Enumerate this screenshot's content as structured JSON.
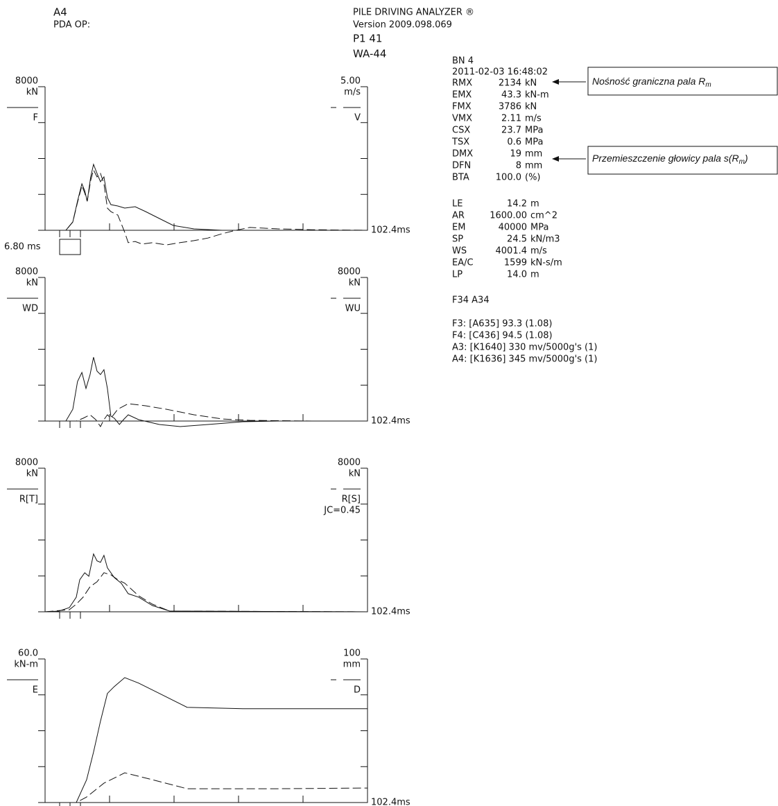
{
  "header": {
    "left": [
      "A4",
      "PDA OP:"
    ],
    "center": [
      "PILE DRIVING ANALYZER ®",
      "Version 2009.098.069",
      "P1 41",
      "WA-44"
    ]
  },
  "info": {
    "top": [
      "BN  4",
      "2011-02-03 16:48:02"
    ],
    "rows1": [
      [
        "RMX",
        "2134",
        "kN"
      ],
      [
        "EMX",
        "43.3",
        "kN-m"
      ],
      [
        "FMX",
        "3786",
        "kN"
      ],
      [
        "VMX",
        "2.11",
        "m/s"
      ],
      [
        "CSX",
        "23.7",
        "MPa"
      ],
      [
        "TSX",
        "0.6",
        "MPa"
      ],
      [
        "DMX",
        "19",
        "mm"
      ],
      [
        "DFN",
        "8",
        "mm"
      ],
      [
        "BTA",
        "100.0",
        "(%)"
      ]
    ],
    "rows2": [
      [
        "LE",
        "14.2",
        "m"
      ],
      [
        "AR",
        "1600.00",
        "cm^2"
      ],
      [
        "EM",
        "40000",
        "MPa"
      ],
      [
        "SP",
        "24.5",
        "kN/m3"
      ],
      [
        "WS",
        "4001.4",
        "m/s"
      ],
      [
        "EA/C",
        "1599",
        "kN-s/m"
      ],
      [
        "LP",
        "14.0",
        "m"
      ]
    ],
    "gauges": "F34  A34",
    "sensors": [
      "F3: [A635] 93.3 (1.08)",
      "F4: [C436] 94.5 (1.08)",
      "A3: [K1640] 330 mv/5000g's (1)",
      "A4: [K1636] 345 mv/5000g's (1)"
    ]
  },
  "annotations": [
    {
      "text": "Nośność graniczna pala R",
      "sub": "m",
      "tail": ""
    },
    {
      "text": "Przemieszczenie głowicy pala s(R",
      "sub": "m",
      "tail": ")"
    }
  ],
  "panels": [
    {
      "left": {
        "max": 8000,
        "unit": "kN",
        "label": "F"
      },
      "right": {
        "max": {
          "value": 5,
          "label": "5.00"
        },
        "unit": "m/s",
        "label": "V"
      },
      "xmax": {
        "value": 102.4,
        "label": "102.4ms"
      },
      "marker": "6.80 ms",
      "traces": [
        {
          "axis": "left",
          "style": "solid",
          "x": [
            0,
            6.6,
            8.8,
            10.3,
            11.7,
            12.6,
            13.4,
            14.5,
            15.4,
            16.5,
            17.6,
            18.7,
            19.8,
            20.9,
            23.1,
            25.3,
            28.6,
            31.9,
            36.3,
            40.7,
            47.3,
            56.2,
            102.4
          ],
          "values": [
            0,
            0,
            464,
            1623,
            2590,
            2203,
            1623,
            2976,
            3671,
            3169,
            2705,
            2976,
            1817,
            1430,
            1353,
            1237,
            1314,
            1044,
            657,
            271,
            77,
            0,
            0
          ]
        },
        {
          "axis": "right",
          "style": "dashed",
          "x": [
            0,
            6.6,
            8.8,
            10.3,
            11.7,
            12.6,
            13.4,
            14.5,
            15.4,
            16.5,
            17.6,
            18.7,
            19.8,
            20.9,
            23.1,
            25.3,
            26.4,
            28.6,
            30.8,
            34.1,
            38.5,
            42.9,
            47.3,
            51.7,
            56.2,
            60.6,
            65,
            73.8,
            84.8,
            102.4
          ],
          "values": [
            0,
            0,
            0.29,
            0.97,
            1.55,
            1.3,
            1.01,
            1.74,
            2.1,
            1.86,
            1.98,
            1.62,
            0.77,
            0.65,
            0.53,
            -0.07,
            -0.43,
            -0.39,
            -0.48,
            -0.43,
            -0.51,
            -0.43,
            -0.36,
            -0.27,
            -0.12,
            0,
            0.1,
            0.05,
            0.02,
            0
          ]
        }
      ]
    },
    {
      "left": {
        "max": 8000,
        "unit": "kN",
        "label": "WD"
      },
      "right": {
        "max": 8000,
        "unit": "kN",
        "label": "WU"
      },
      "xmax": {
        "value": 102.4,
        "label": "102.4ms"
      },
      "traces": [
        {
          "axis": "left",
          "style": "solid",
          "x": [
            0,
            6.6,
            8.8,
            10.3,
            11.7,
            13.0,
            14.3,
            15.4,
            16.5,
            17.6,
            18.7,
            19.8,
            20.9,
            22.0,
            23.6,
            24.9,
            26.4,
            29.7,
            36.3,
            42.9,
            51.7,
            62.8,
            73.8,
            102.4
          ],
          "values": [
            0,
            0,
            657,
            2203,
            2705,
            1817,
            2590,
            3556,
            2783,
            2590,
            2860,
            1817,
            271,
            155,
            -193,
            77,
            348,
            77,
            -193,
            -309,
            -193,
            -39,
            0,
            0
          ]
        },
        {
          "axis": "right",
          "style": "dashed",
          "x": [
            0,
            9.9,
            12.1,
            14.3,
            16.1,
            17.6,
            18.7,
            19.8,
            20.9,
            23.1,
            26.4,
            31.9,
            38.5,
            47.3,
            56.2,
            65,
            84.8,
            102.4
          ],
          "values": [
            0,
            0,
            155,
            348,
            77,
            -309,
            77,
            348,
            155,
            657,
            966,
            850,
            657,
            348,
            116,
            39,
            0,
            0
          ]
        }
      ]
    },
    {
      "left": {
        "max": 8000,
        "unit": "kN",
        "label": "R[T]"
      },
      "right": {
        "max": 8000,
        "unit": "kN",
        "label": "R[S]"
      },
      "note": "JC=0.45",
      "xmax": {
        "value": 102.4,
        "label": "102.4ms"
      },
      "traces": [
        {
          "axis": "left",
          "style": "solid",
          "x": [
            0,
            4.4,
            7.7,
            9.9,
            11.0,
            12.6,
            13.9,
            15.4,
            16.5,
            17.6,
            18.7,
            19.8,
            22.0,
            24.2,
            26.4,
            29.7,
            34.1,
            39.6,
            102.4
          ],
          "values": [
            0,
            39,
            233,
            815,
            1786,
            2175,
            1980,
            3223,
            2835,
            2757,
            3145,
            2446,
            1903,
            1592,
            1010,
            815,
            349,
            39,
            0
          ]
        },
        {
          "axis": "right",
          "style": "dashed",
          "x": [
            0,
            7.7,
            9.9,
            12.1,
            14.3,
            16.5,
            18.7,
            20.9,
            23.1,
            25.3,
            29.7,
            34.1,
            39.6,
            102.4
          ],
          "values": [
            0,
            116,
            427,
            815,
            1398,
            1670,
            2175,
            2058,
            1786,
            1592,
            892,
            427,
            39,
            0
          ]
        }
      ]
    },
    {
      "left": {
        "max": {
          "value": 60,
          "label": "60.0"
        },
        "unit": "kN-m",
        "label": "E"
      },
      "right": {
        "max": 100,
        "unit": "mm",
        "label": "D"
      },
      "xmax": {
        "value": 102.4,
        "label": "102.4ms"
      },
      "traces": [
        {
          "axis": "left",
          "style": "solid",
          "x": [
            0,
            9.9,
            11.7,
            13.2,
            15.4,
            17.6,
            19.8,
            22.0,
            25.3,
            29.7,
            36.3,
            45.1,
            62.8,
            102.4
          ],
          "values": [
            0,
            0,
            5.2,
            9.5,
            21.1,
            34.0,
            45.6,
            48.5,
            52.2,
            49.9,
            45.6,
            39.8,
            39.2,
            39.2
          ]
        },
        {
          "axis": "right",
          "style": "dashed",
          "x": [
            0,
            9.9,
            13.2,
            18.7,
            25.3,
            34.1,
            45.1,
            56.2,
            73.8,
            102.4
          ],
          "values": [
            0,
            0,
            3.8,
            13.5,
            20.7,
            15.9,
            9.6,
            9.6,
            9.6,
            10.1
          ]
        }
      ]
    }
  ]
}
